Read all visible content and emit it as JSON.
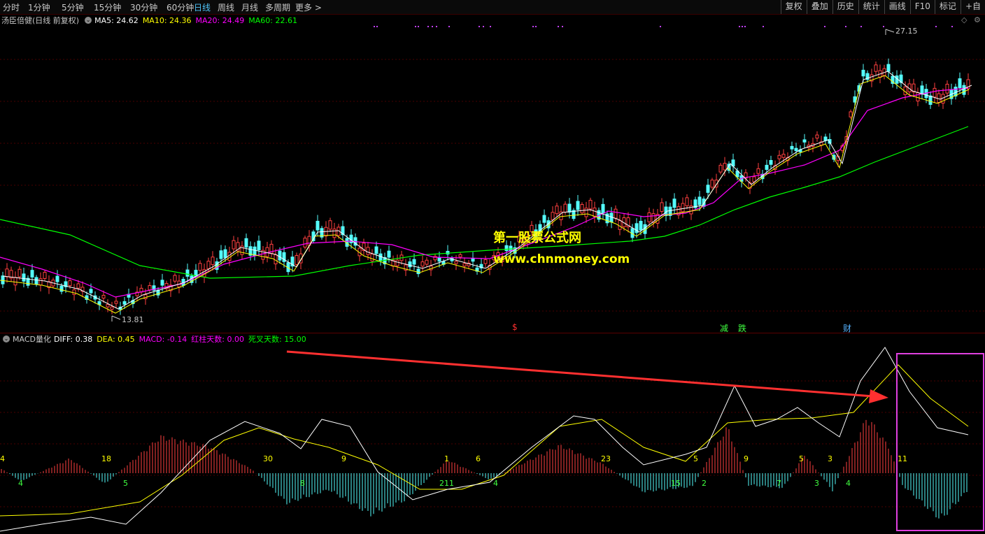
{
  "toolbar": {
    "periods": [
      "分时",
      "1分钟",
      "5分钟",
      "15分钟",
      "30分钟",
      "60分钟",
      "日线",
      "周线",
      "月线",
      "多周期",
      "更多 >"
    ],
    "active_period": "日线",
    "right_tools": [
      "复权",
      "叠加",
      "历史",
      "统计",
      "画线",
      "F10",
      "标记",
      "+自"
    ]
  },
  "price_panel": {
    "stock_title": "汤臣倍健(日线 前复权)",
    "ma5": "MA5: 24.62",
    "ma10": "MA10: 24.36",
    "ma20": "MA20: 24.49",
    "ma60": "MA60: 22.61",
    "high_label": "27.15",
    "low_label": "13.81",
    "colors": {
      "ma5": "#ffffff",
      "ma10": "#ffff00",
      "ma20": "#ff00ff",
      "ma60": "#00ff00",
      "up": "#ff4040",
      "down": "#54fcfc"
    }
  },
  "events": [
    {
      "text": "$",
      "color": "#ff3030"
    },
    {
      "text": "减",
      "color": "#40ff40"
    },
    {
      "text": "跌",
      "color": "#40ff40"
    },
    {
      "text": "财",
      "color": "#54b0fc"
    }
  ],
  "macd_panel": {
    "title": "MACD量化",
    "diff": "DIFF: 0.38",
    "dea": "DEA: 0.45",
    "macd": "MACD: -0.14",
    "red_days": "红柱天数: 0.00",
    "death_days": "死叉天数: 15.00",
    "red_counts": [
      "4",
      "18",
      "30",
      "9",
      "1",
      "6",
      "23",
      "5",
      "9",
      "5",
      "3",
      "11"
    ],
    "green_counts": [
      "4",
      "5",
      "8",
      "211",
      "4",
      "15",
      "2",
      "7",
      "3",
      "4"
    ]
  },
  "watermark": {
    "cn": "第一股票公式网",
    "url": "www.chnmoney.com"
  },
  "chart_data": {
    "type": "candlestick",
    "title": "汤臣倍健(日线 前复权)",
    "price_high": 27.15,
    "price_low": 13.81,
    "ma_latest": {
      "MA5": 24.62,
      "MA10": 24.36,
      "MA20": 24.49,
      "MA60": 22.61
    },
    "indicator": {
      "name": "MACD量化",
      "DIFF": 0.38,
      "DEA": 0.45,
      "MACD": -0.14,
      "红柱天数": 0.0,
      "死叉天数": 15.0
    }
  }
}
